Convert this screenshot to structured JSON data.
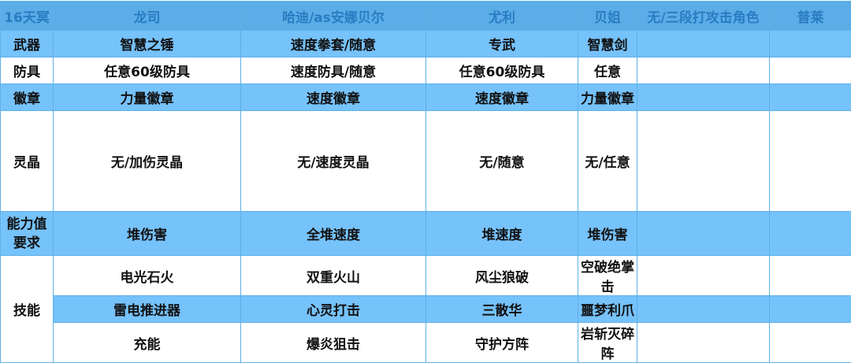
{
  "header": [
    "16天冥",
    "龙司",
    "哈迪/as安娜贝尔",
    "尤利",
    "贝姐",
    "无/三段打攻击角色",
    "普莱"
  ],
  "rows": [
    {
      "label": "武器",
      "cells": [
        "智慧之锤",
        "速度拳套/随意",
        "专武",
        "智慧剑",
        "",
        ""
      ]
    },
    {
      "label": "防具",
      "cells": [
        "任意60级防具",
        "速度防具/随意",
        "任意60级防具",
        "任意",
        "",
        ""
      ]
    },
    {
      "label": "徽章",
      "cells": [
        "力量徽章",
        "速度徽章",
        "速度徽章",
        "力量徽章",
        "",
        ""
      ]
    },
    {
      "label": "灵晶",
      "cells": [
        "无/加伤灵晶",
        "无/速度灵晶",
        "无/随意",
        "无/任意",
        "",
        ""
      ]
    },
    {
      "label": "能力值要求",
      "cells": [
        "堆伤害",
        "全堆速度",
        "堆速度",
        "堆伤害",
        "",
        ""
      ]
    }
  ],
  "skills": {
    "label": "技能",
    "rows": [
      [
        "电光石火",
        "双重火山",
        "风尘狼破",
        "空破绝掌击",
        "",
        ""
      ],
      [
        "雷电推进器",
        "心灵打击",
        "三散华",
        "噩梦利爪",
        "",
        ""
      ],
      [
        "充能",
        "爆炎狙击",
        "守护方阵",
        "岩斩灭碎阵",
        "",
        ""
      ]
    ]
  },
  "colors": {
    "header_bg": "#5aade6",
    "header_text": "#2a7cc2",
    "blue_row": "#76c2fb",
    "border": "#5fb0e6"
  }
}
